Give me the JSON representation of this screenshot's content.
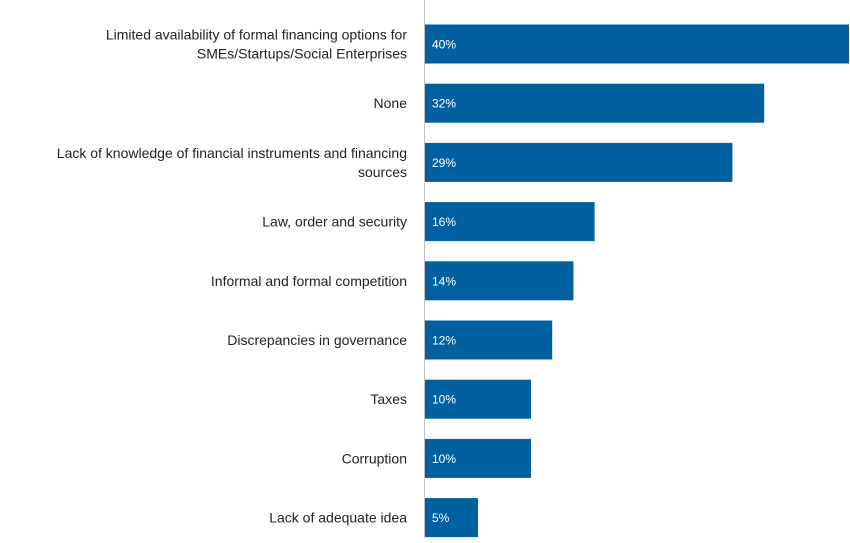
{
  "chart_data": {
    "type": "bar",
    "orientation": "horizontal",
    "categories": [
      [
        "Limited availability of formal financing options for",
        "SMEs/Startups/Social Enterprises"
      ],
      [
        "None"
      ],
      [
        "Lack of knowledge of financial instruments and financing",
        "sources"
      ],
      [
        "Law, order and security"
      ],
      [
        "Informal and formal competition"
      ],
      [
        "Discrepancies in governance"
      ],
      [
        "Taxes"
      ],
      [
        "Corruption"
      ],
      [
        "Lack of adequate idea"
      ]
    ],
    "values": [
      40,
      32,
      29,
      16,
      14,
      12,
      10,
      10,
      5
    ],
    "value_labels": [
      "40%",
      "32%",
      "29%",
      "16%",
      "14%",
      "12%",
      "10%",
      "10%",
      "5%"
    ],
    "unit": "%",
    "xlim": [
      0,
      40
    ],
    "title": "",
    "xlabel": "",
    "ylabel": "",
    "grid": false,
    "legend": "none",
    "bar_color": "#0060A0",
    "axis_color": "#BFBFBF"
  }
}
